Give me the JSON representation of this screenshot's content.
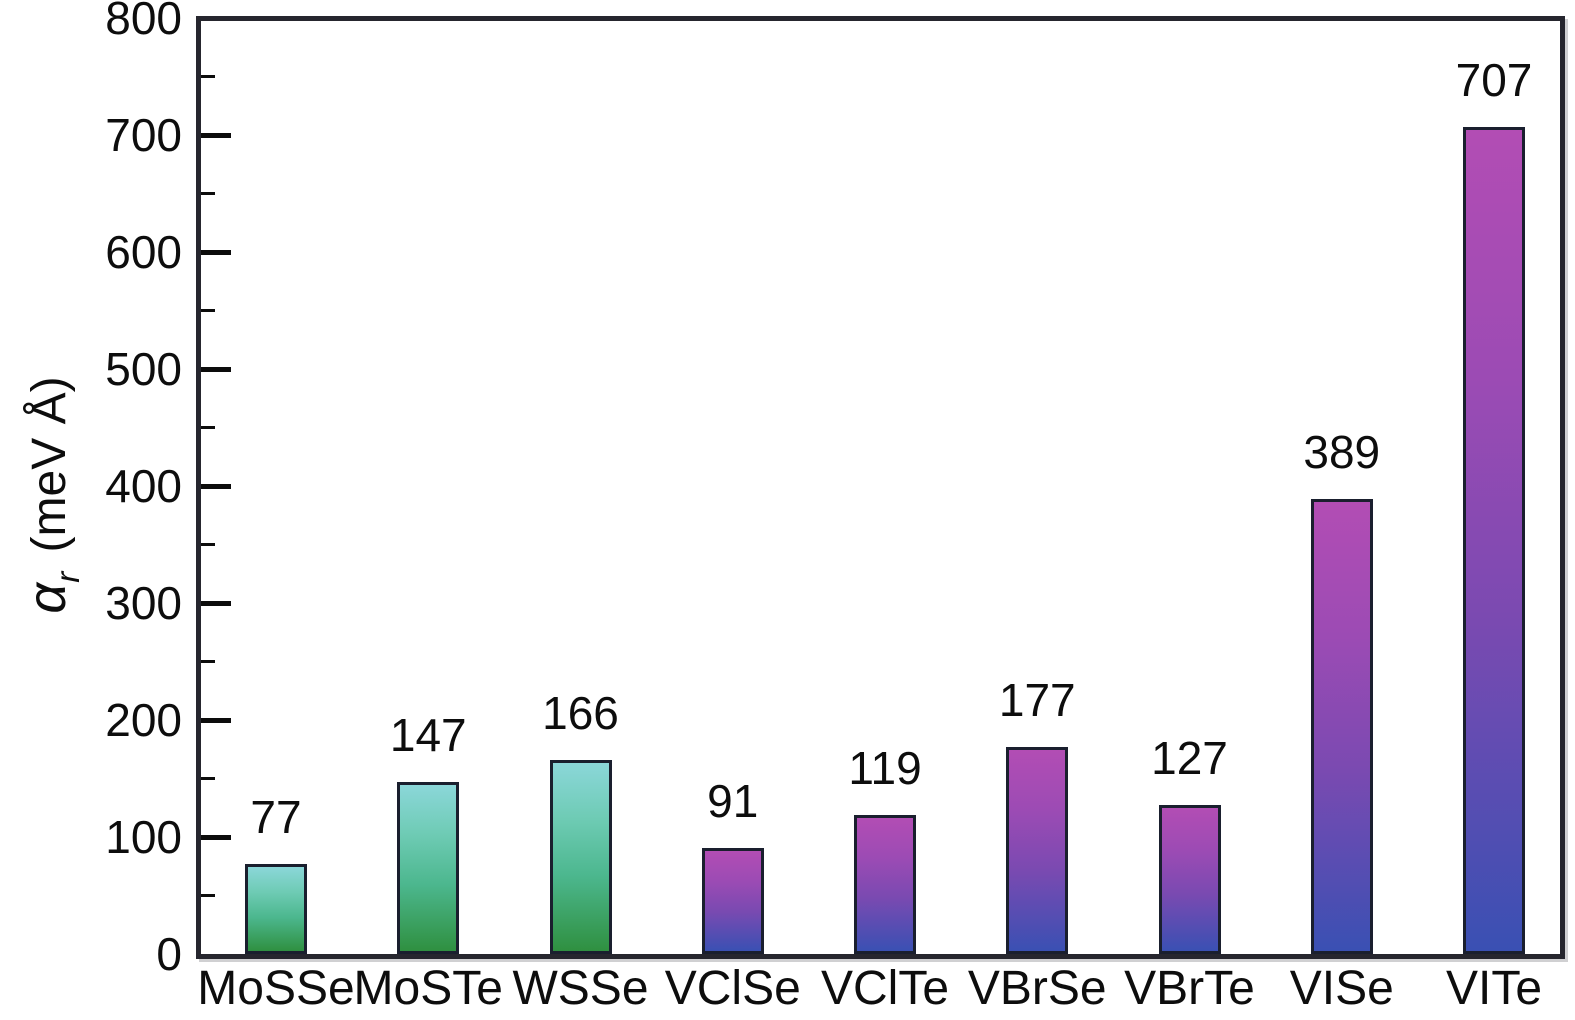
{
  "chart_data": {
    "type": "bar",
    "categories": [
      "MoSSe",
      "MoSTe",
      "WSSe",
      "VClSe",
      "VClTe",
      "VBrSe",
      "VBrTe",
      "VISe",
      "VITe"
    ],
    "values": [
      77,
      147,
      166,
      91,
      119,
      177,
      127,
      389,
      707
    ],
    "bar_labels": [
      "77",
      "147",
      "166",
      "91",
      "119",
      "177",
      "127",
      "389",
      "707"
    ],
    "title": "",
    "xlabel": "",
    "ylabel": "α_r (meV Å)",
    "ylabel_parts": {
      "symbol": "α",
      "subscript": "r",
      "unit": "(meV Å)"
    },
    "ylim": [
      0,
      800
    ],
    "yticks": [
      0,
      100,
      200,
      300,
      400,
      500,
      600,
      700,
      800
    ],
    "minor_tick_step": 50,
    "grid": false,
    "legend": "none",
    "bar_style_groups": [
      {
        "bar_indices": [
          0,
          1,
          2
        ],
        "style": "teal",
        "gradient_top": "#8bd7d9",
        "gradient_mid": "#4cb78e",
        "gradient_bottom": "#2f9040"
      },
      {
        "bar_indices": [
          3,
          4,
          5,
          6,
          7,
          8
        ],
        "style": "purple",
        "gradient_top": "#b24db4",
        "gradient_mid": "#7a4ab1",
        "gradient_bottom": "#3a50b3"
      }
    ],
    "colors": {
      "frame": "#26262e",
      "bar_outline": "#1a1f2e",
      "tick": "#0c0c0c",
      "text": "#0d0d0d",
      "background": "#ffffff"
    }
  }
}
